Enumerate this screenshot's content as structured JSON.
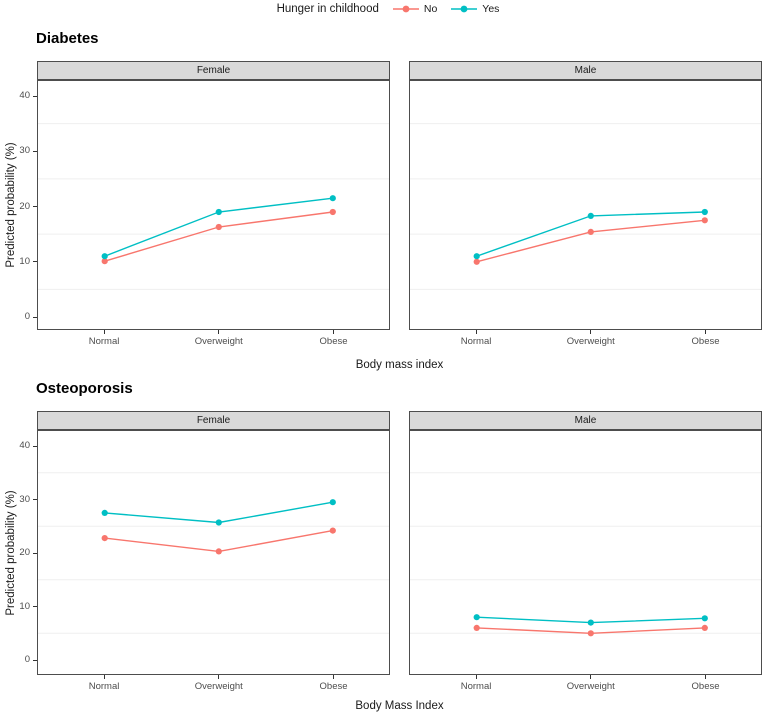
{
  "legend": {
    "title": "Hunger in childhood",
    "items": [
      {
        "label": "No",
        "color": "#F8766D"
      },
      {
        "label": "Yes",
        "color": "#00BFC4"
      }
    ]
  },
  "colors": {
    "no_series": "#F8766D",
    "yes_series": "#00BFC4",
    "strip_background": "#D9D9D9",
    "panel_border": "#4D4D4D",
    "minor_gridline": "#EFEFEF",
    "tick_mark": "#333333"
  },
  "chart_data": [
    {
      "type": "line",
      "title": "Diabetes",
      "xlabel": "Body mass index",
      "ylabel": "Predicted probability (%)",
      "categories": [
        "Normal",
        "Overweight",
        "Obese"
      ],
      "y_ticks": [
        0,
        10,
        20,
        30,
        40
      ],
      "y_minor_gridlines": [
        5,
        15,
        25,
        35
      ],
      "ylim": [
        0,
        40
      ],
      "legend_position": "top",
      "grid": "minor-horizontal-only",
      "facets": [
        {
          "label": "Female",
          "series": [
            {
              "name": "No",
              "color": "#F8766D",
              "values": [
                10.1,
                16.3,
                19.0
              ]
            },
            {
              "name": "Yes",
              "color": "#00BFC4",
              "values": [
                11.0,
                19.0,
                21.5
              ]
            }
          ]
        },
        {
          "label": "Male",
          "series": [
            {
              "name": "No",
              "color": "#F8766D",
              "values": [
                10.0,
                15.4,
                17.5
              ]
            },
            {
              "name": "Yes",
              "color": "#00BFC4",
              "values": [
                11.0,
                18.3,
                19.0
              ]
            }
          ]
        }
      ]
    },
    {
      "type": "line",
      "title": "Osteoporosis",
      "xlabel": "Body Mass Index",
      "ylabel": "Predicted probability (%)",
      "categories": [
        "Normal",
        "Overweight",
        "Obese"
      ],
      "y_ticks": [
        0,
        10,
        20,
        30,
        40
      ],
      "y_minor_gridlines": [
        5,
        15,
        25,
        35
      ],
      "ylim": [
        0,
        40
      ],
      "legend_position": "top",
      "grid": "minor-horizontal-only",
      "facets": [
        {
          "label": "Female",
          "series": [
            {
              "name": "No",
              "color": "#F8766D",
              "values": [
                22.8,
                20.3,
                24.2
              ]
            },
            {
              "name": "Yes",
              "color": "#00BFC4",
              "values": [
                27.5,
                25.7,
                29.5
              ]
            }
          ]
        },
        {
          "label": "Male",
          "series": [
            {
              "name": "No",
              "color": "#F8766D",
              "values": [
                6.0,
                5.0,
                6.0
              ]
            },
            {
              "name": "Yes",
              "color": "#00BFC4",
              "values": [
                8.0,
                7.0,
                7.8
              ]
            }
          ]
        }
      ]
    }
  ]
}
